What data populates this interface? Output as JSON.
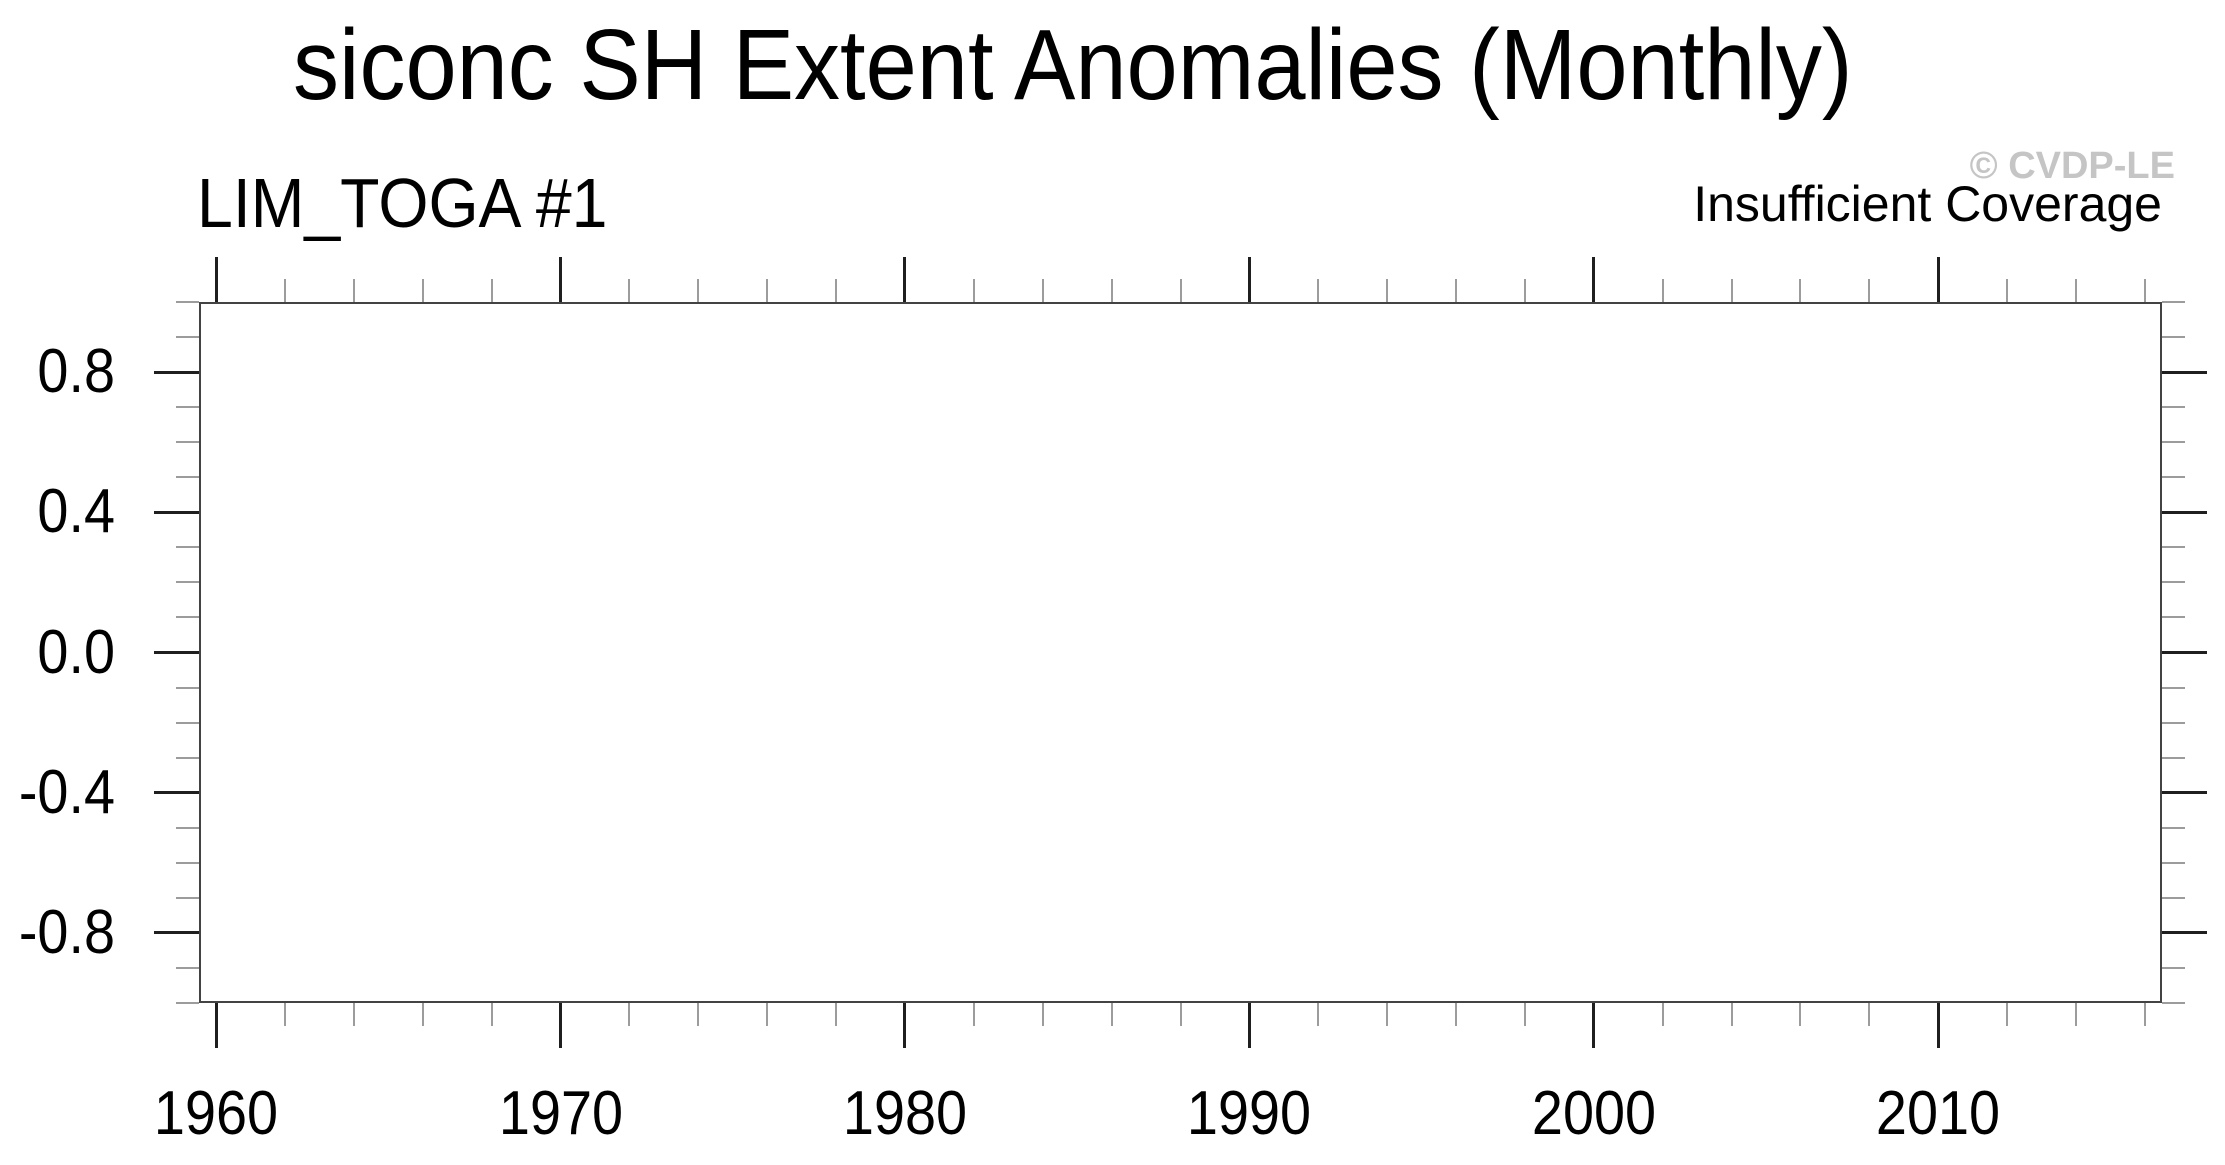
{
  "chart_data": {
    "type": "line",
    "title": "siconc SH Extent Anomalies (Monthly)",
    "left_string": "LIM_TOGA #1",
    "right_string": "Insufficient Coverage",
    "watermark": "© CVDP-LE",
    "series": [],
    "x_axis": {
      "min": 1959.5,
      "max": 2016.5,
      "major_ticks": [
        1960,
        1970,
        1980,
        1990,
        2000,
        2010
      ],
      "tick_labels": [
        "1960",
        "1970",
        "1980",
        "1990",
        "2000",
        "2010"
      ],
      "minor_tick_start": 1960,
      "minor_tick_step": 2,
      "minor_tick_end": 2016
    },
    "y_axis": {
      "min": -1.0,
      "max": 1.0,
      "major_ticks": [
        0.8,
        0.4,
        0.0,
        -0.4,
        -0.8
      ],
      "tick_labels": [
        "0.8",
        "0.4",
        "0.0",
        "-0.4",
        "-0.8"
      ],
      "minor_tick_step": 0.1,
      "zero_line": true
    },
    "grid": false,
    "legend": null,
    "colors": {
      "background": "#ffffff",
      "text": "#000000",
      "frame": "#434343",
      "major_tick": "#1f1f1f",
      "minor_tick": "#9c9c9c",
      "zero_line": "#dcdcdc",
      "watermark": "#c5c5c5"
    }
  }
}
